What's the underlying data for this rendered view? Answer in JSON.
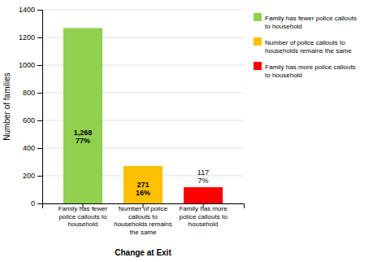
{
  "chart_data": {
    "type": "bar",
    "xlabel": "Change at Exit",
    "ylabel": "Number of families",
    "categories": [
      "Family has fewer\npolice callouts to\nhousehold",
      "Number of police\ncallouts to\nhouseholds remains\nthe same",
      "Family has more\npolice callouts to\nhousehold"
    ],
    "series": [
      {
        "name": "Family has fewer police callouts\nto household",
        "color": "#92d050",
        "values": [
          1268,
          null,
          null
        ],
        "value_labels": [
          "1,268\n77%",
          null,
          null
        ]
      },
      {
        "name": "Number of police callouts to\nhouseholds remains the same",
        "color": "#ffc000",
        "values": [
          null,
          271,
          null
        ],
        "value_labels": [
          null,
          "271\n16%",
          null
        ]
      },
      {
        "name": "Family has more police callouts\nto household",
        "color": "#ff0000",
        "values": [
          null,
          null,
          117
        ],
        "value_labels": [
          null,
          null,
          "117\n7%"
        ]
      }
    ],
    "ylim": [
      0,
      1400
    ],
    "yticks": [
      0,
      200,
      400,
      600,
      800,
      1000,
      1200,
      1400
    ],
    "grid": true,
    "legend": "right",
    "data_labels": true
  }
}
